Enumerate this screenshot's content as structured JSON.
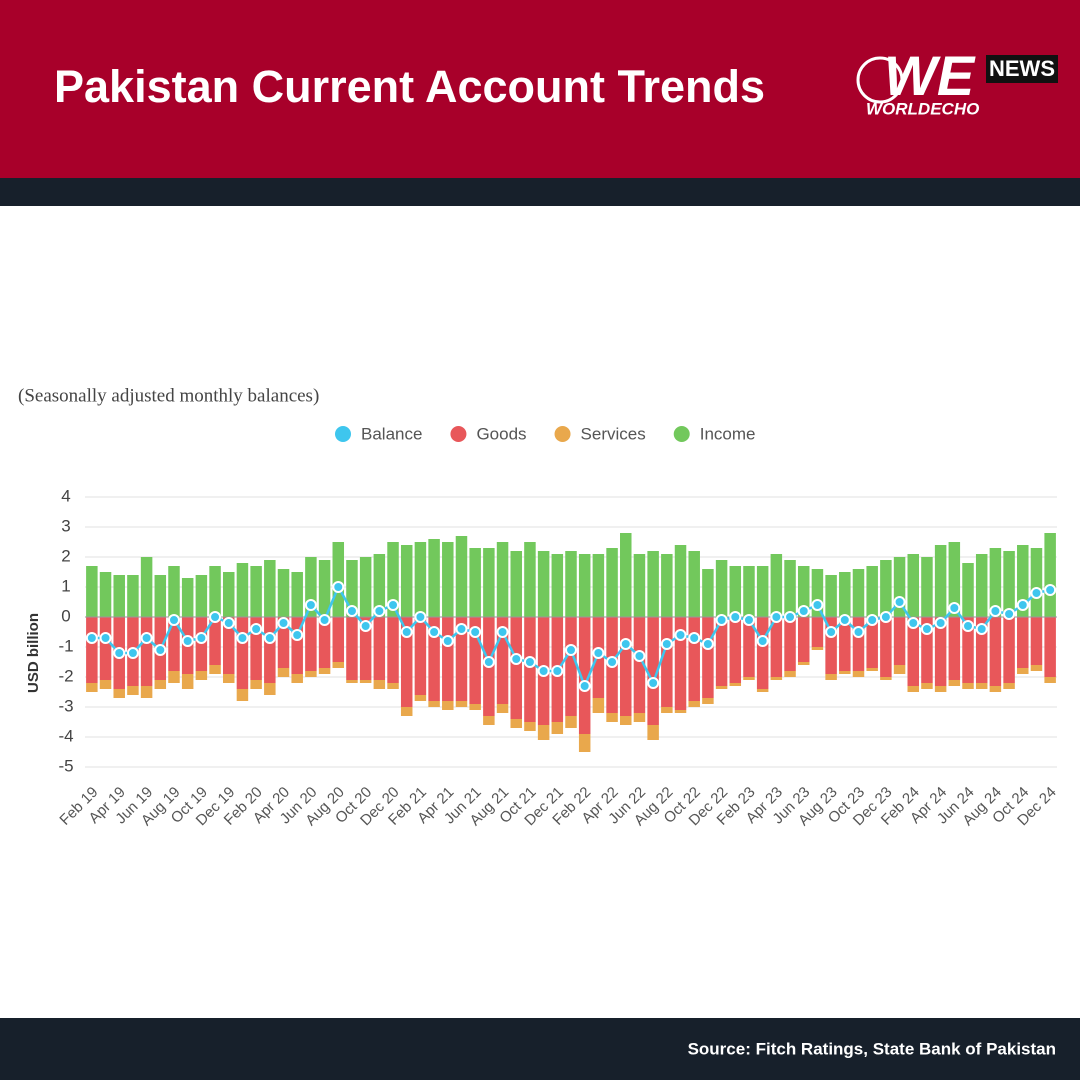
{
  "header": {
    "title": "Pakistan Current Account Trends"
  },
  "logo": {
    "mark": "WE",
    "badge": "NEWS",
    "name": "WORLDECHO"
  },
  "footer": {
    "source": "Source: Fitch Ratings, State Bank of Pakistan"
  },
  "chart_data": {
    "type": "bar",
    "stacked": true,
    "subtitle": "(Seasonally adjusted monthly balances)",
    "ylabel": "USD billion",
    "categories": [
      "Feb 19",
      null,
      "Apr 19",
      null,
      "Jun 19",
      null,
      "Aug 19",
      null,
      "Oct 19",
      null,
      "Dec 19",
      null,
      "Feb 20",
      null,
      "Apr 20",
      null,
      "Jun 20",
      null,
      "Aug 20",
      null,
      "Oct 20",
      null,
      "Dec 20",
      null,
      "Feb 21",
      null,
      "Apr 21",
      null,
      "Jun 21",
      null,
      "Aug 21",
      null,
      "Oct 21",
      null,
      "Dec 21",
      null,
      "Feb 22",
      null,
      "Apr 22",
      null,
      "Jun 22",
      null,
      "Aug 22",
      null,
      "Oct 22",
      null,
      "Dec 22",
      null,
      "Feb 23",
      null,
      "Apr 23",
      null,
      "Jun 23",
      null,
      "Aug 23",
      null,
      "Oct 23",
      null,
      "Dec 23",
      null,
      "Feb 24",
      null,
      "Apr 24",
      null,
      "Jun 24",
      null,
      "Aug 24",
      null,
      "Oct 24",
      null,
      "Dec 24"
    ],
    "series": [
      {
        "name": "Balance",
        "type": "line",
        "color": "#3ec6ee",
        "values": [
          -0.7,
          -0.7,
          -1.2,
          -1.2,
          -0.7,
          -1.1,
          -0.1,
          -0.8,
          -0.7,
          0.0,
          -0.2,
          -0.7,
          -0.4,
          -0.7,
          -0.2,
          -0.6,
          0.4,
          -0.1,
          1.0,
          0.2,
          -0.3,
          0.2,
          0.4,
          -0.5,
          0.0,
          -0.5,
          -0.8,
          -0.4,
          -0.5,
          -1.5,
          -0.5,
          -1.4,
          -1.5,
          -1.8,
          -1.8,
          -1.1,
          -2.3,
          -1.2,
          -1.5,
          -0.9,
          -1.3,
          -2.2,
          -0.9,
          -0.6,
          -0.7,
          -0.9,
          -0.1,
          0.0,
          -0.1,
          -0.8,
          0.0,
          0.0,
          0.2,
          0.4,
          -0.5,
          -0.1,
          -0.5,
          -0.1,
          0.0,
          0.5,
          -0.2,
          -0.4,
          -0.2,
          0.3,
          -0.3,
          -0.4,
          0.2,
          0.1,
          0.4,
          0.8,
          0.9
        ]
      },
      {
        "name": "Goods",
        "color": "#e8575a",
        "values": [
          -2.2,
          -2.1,
          -2.4,
          -2.3,
          -2.3,
          -2.1,
          -1.8,
          -1.9,
          -1.8,
          -1.6,
          -1.9,
          -2.4,
          -2.1,
          -2.2,
          -1.7,
          -1.9,
          -1.8,
          -1.7,
          -1.5,
          -2.1,
          -2.1,
          -2.1,
          -2.2,
          -3.0,
          -2.6,
          -2.8,
          -2.8,
          -2.8,
          -2.9,
          -3.3,
          -2.9,
          -3.4,
          -3.5,
          -3.6,
          -3.5,
          -3.3,
          -3.9,
          -2.7,
          -3.2,
          -3.3,
          -3.2,
          -3.6,
          -3.0,
          -3.1,
          -2.8,
          -2.7,
          -2.3,
          -2.2,
          -2.0,
          -2.4,
          -2.0,
          -1.8,
          -1.5,
          -1.0,
          -1.9,
          -1.8,
          -1.8,
          -1.7,
          -2.0,
          -1.6,
          -2.3,
          -2.2,
          -2.3,
          -2.1,
          -2.2,
          -2.2,
          -2.3,
          -2.2,
          -1.7,
          -1.6,
          -2.0
        ]
      },
      {
        "name": "Services",
        "color": "#e9a84c",
        "values": [
          -0.3,
          -0.3,
          -0.3,
          -0.3,
          -0.4,
          -0.3,
          -0.4,
          -0.5,
          -0.3,
          -0.3,
          -0.3,
          -0.4,
          -0.3,
          -0.4,
          -0.3,
          -0.3,
          -0.2,
          -0.2,
          -0.2,
          -0.1,
          -0.1,
          -0.3,
          -0.2,
          -0.3,
          -0.2,
          -0.2,
          -0.3,
          -0.2,
          -0.2,
          -0.3,
          -0.3,
          -0.3,
          -0.3,
          -0.5,
          -0.4,
          -0.4,
          -0.6,
          -0.5,
          -0.3,
          -0.3,
          -0.3,
          -0.5,
          -0.2,
          -0.1,
          -0.2,
          -0.2,
          -0.1,
          -0.1,
          -0.1,
          -0.1,
          -0.1,
          -0.2,
          -0.1,
          -0.1,
          -0.2,
          -0.1,
          -0.2,
          -0.1,
          -0.1,
          -0.3,
          -0.2,
          -0.2,
          -0.2,
          -0.2,
          -0.2,
          -0.2,
          -0.2,
          -0.2,
          -0.2,
          -0.2,
          -0.2
        ]
      },
      {
        "name": "Income",
        "color": "#72c85c",
        "values": [
          1.7,
          1.5,
          1.4,
          1.4,
          2.0,
          1.4,
          1.7,
          1.3,
          1.4,
          1.7,
          1.5,
          1.8,
          1.7,
          1.9,
          1.6,
          1.5,
          2.0,
          1.9,
          2.5,
          1.9,
          2.0,
          2.1,
          2.5,
          2.4,
          2.5,
          2.6,
          2.5,
          2.7,
          2.3,
          2.3,
          2.5,
          2.2,
          2.5,
          2.2,
          2.1,
          2.2,
          2.1,
          2.1,
          2.3,
          2.8,
          2.1,
          2.2,
          2.1,
          2.4,
          2.2,
          1.6,
          1.9,
          1.7,
          1.7,
          1.7,
          2.1,
          1.9,
          1.7,
          1.6,
          1.4,
          1.5,
          1.6,
          1.7,
          1.9,
          2.0,
          2.1,
          2.0,
          2.4,
          2.5,
          1.8,
          2.1,
          2.3,
          2.2,
          2.4,
          2.3,
          2.8
        ]
      }
    ],
    "ylim": [
      -5.4,
      4.2
    ],
    "yticks": [
      -5,
      -4,
      -3,
      -2,
      -1,
      0,
      1,
      2,
      3,
      4
    ],
    "grid": true,
    "legend": "top"
  }
}
